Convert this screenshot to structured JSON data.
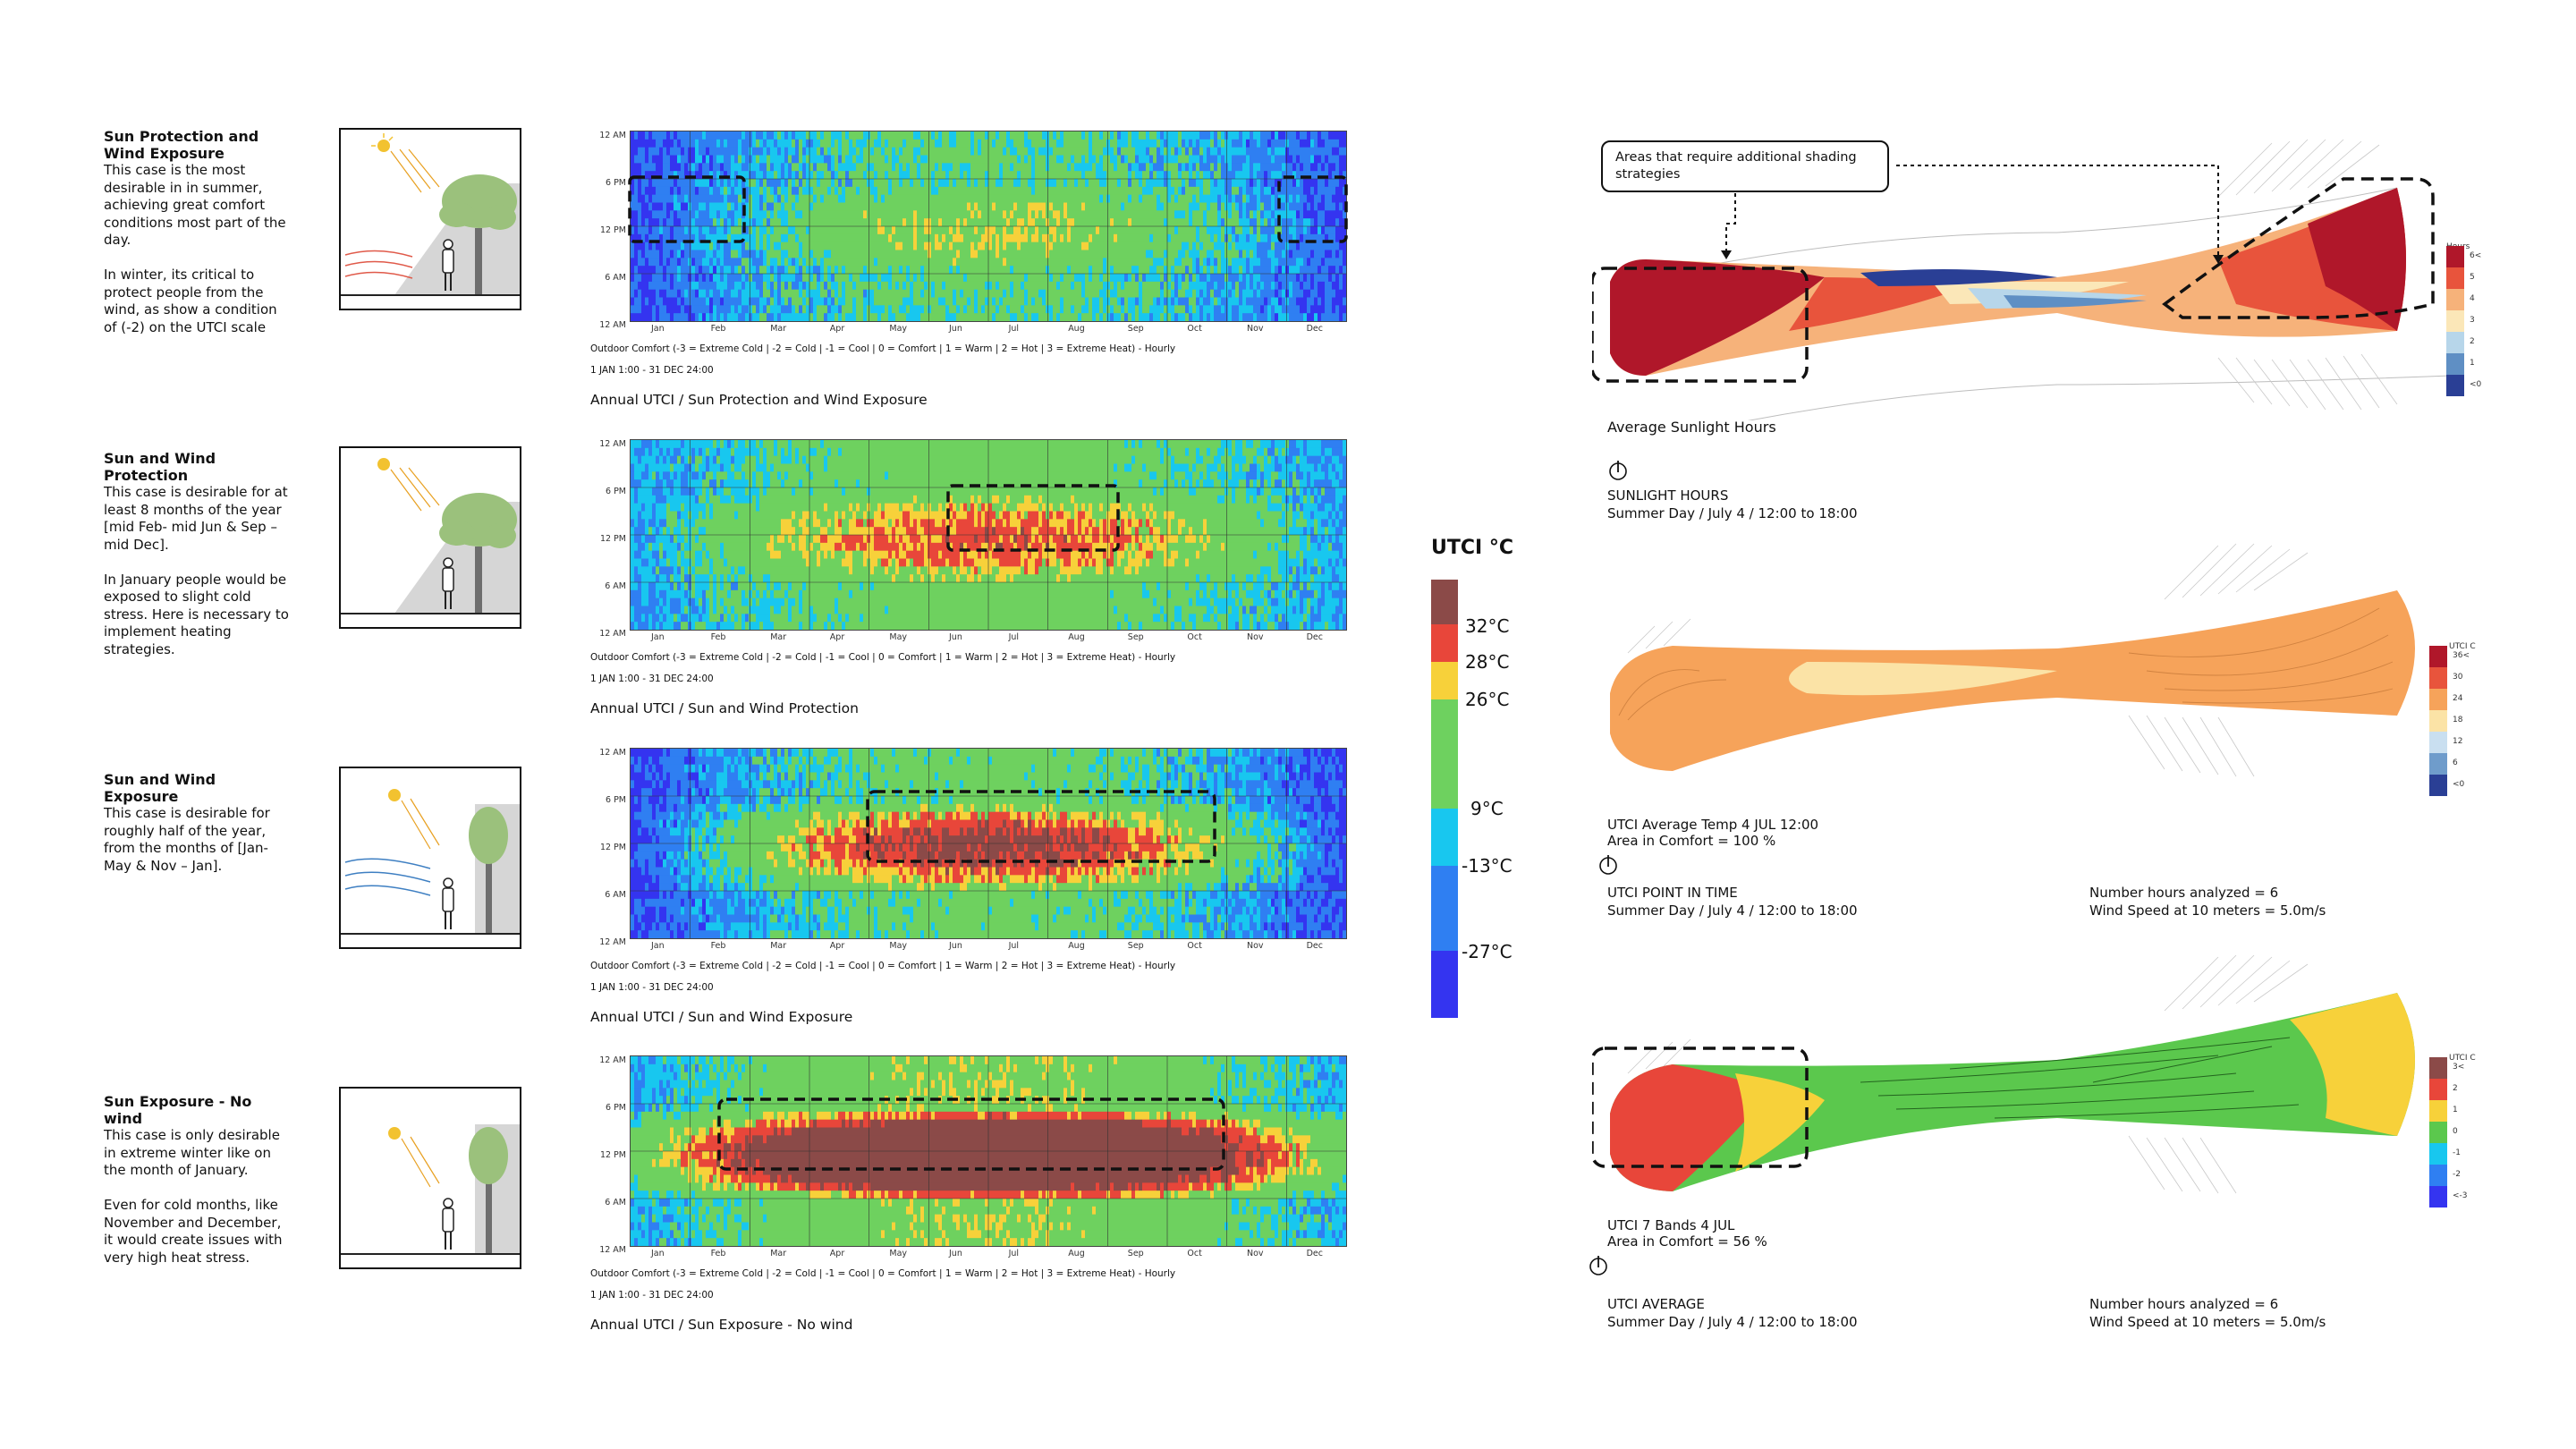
{
  "cases": [
    {
      "title": "Sun Protection and Wind Exposure",
      "text": "This case is the most desirable in in summer, achieving great comfort conditions most part of the day.\n\nIn winter, its critical to protect people from the wind, as show a condition of (-2) on the UTCI scale",
      "chart_title": "Annual UTCI / Sun Protection and Wind Exposure"
    },
    {
      "title": "Sun and Wind Protection",
      "text": "This case is desirable for at least 8 months of the year [mid Feb- mid Jun & Sep – mid Dec].\n\nIn January people would be exposed to slight cold stress. Here is necessary to implement heating strategies.",
      "chart_title": "Annual UTCI / Sun and Wind Protection"
    },
    {
      "title": "Sun and Wind Exposure",
      "text": "This case is desirable for roughly half of the year, from the months of [Jan-May & Nov – Jan].",
      "chart_title": "Annual UTCI / Sun and Wind Exposure"
    },
    {
      "title": "Sun Exposure - No wind",
      "text": "This case is only desirable in extreme winter like on the month of January.\n\nEven for cold months, like November and December, it  would  create issues with very high heat stress.",
      "chart_title": "Annual UTCI / Sun Exposure - No wind"
    }
  ],
  "heatmap_common": {
    "hour_labels": [
      "12 AM",
      "6 PM",
      "12 PM",
      "6 AM",
      "12 AM"
    ],
    "months": [
      "Jan",
      "Feb",
      "Mar",
      "Apr",
      "May",
      "Jun",
      "Jul",
      "Aug",
      "Sep",
      "Oct",
      "Nov",
      "Dec"
    ],
    "scale_caption": "Outdoor Comfort (-3 = Extreme Cold | -2 = Cold | -1 = Cool | 0 = Comfort | 1 = Warm | 2 = Hot | 3 = Extreme Heat) - Hourly",
    "period": "1 JAN 1:00 - 31 DEC 24:00"
  },
  "utci_legend": {
    "title": "UTCI °C",
    "ticks": [
      "32°C",
      "28°C",
      "26°C",
      "9°C",
      "-13°C",
      "-27°C"
    ],
    "colors": [
      "#8b4a48",
      "#e8463a",
      "#f7d13a",
      "#6ed15f",
      "#18c7ef",
      "#2f7ff2",
      "#3434f0"
    ]
  },
  "models": [
    {
      "title": "SUNLIGHT HOURS",
      "subtitle": "Summer Day / July 4 / 12:00 to 18:00",
      "caption": "Average Sunlight Hours",
      "legend_title": "Hours",
      "legend_labels": [
        "6<",
        "5",
        "4",
        "3",
        "2",
        "1",
        "<0"
      ],
      "legend_colors": [
        "#b0172a",
        "#e8543c",
        "#f6b27a",
        "#fbe7b8",
        "#b7d6ea",
        "#5f8fc4",
        "#2a3f95"
      ]
    },
    {
      "title": "UTCI POINT IN TIME",
      "subtitle": "Summer Day / July 4 / 12:00 to 18:00",
      "caption_line1": "UTCI Average Temp 4 JUL 12:00",
      "caption_line2": "Area in Comfort = 100 %",
      "info_line1": "Number hours analyzed = 6",
      "info_line2": "Wind Speed at 10 meters = 5.0m/s",
      "legend_title": "UTCI C",
      "legend_labels": [
        "36<",
        "30",
        "24",
        "18",
        "12",
        "6",
        "<0"
      ],
      "legend_colors": [
        "#b0172a",
        "#e8543c",
        "#f6a35a",
        "#fbe3a6",
        "#c9dff0",
        "#6f9ccb",
        "#2a3f95"
      ]
    },
    {
      "title": "UTCI AVERAGE",
      "subtitle": "Summer Day / July 4 / 12:00 to 18:00",
      "caption_line1": "UTCI 7 Bands 4 JUL",
      "caption_line2": "Area in Comfort = 56 %",
      "info_line1": "Number hours analyzed = 6",
      "info_line2": "Wind Speed at 10 meters = 5.0m/s",
      "legend_title": "UTCI C",
      "legend_labels": [
        "3<",
        "2",
        "1",
        "0",
        "-1",
        "-2",
        "<-3"
      ],
      "legend_colors": [
        "#8b4a48",
        "#e8463a",
        "#f7d13a",
        "#5bc84d",
        "#18c7ef",
        "#2f7ff2",
        "#3434f0"
      ]
    }
  ],
  "callout": "Areas that require additional shading strategies"
}
